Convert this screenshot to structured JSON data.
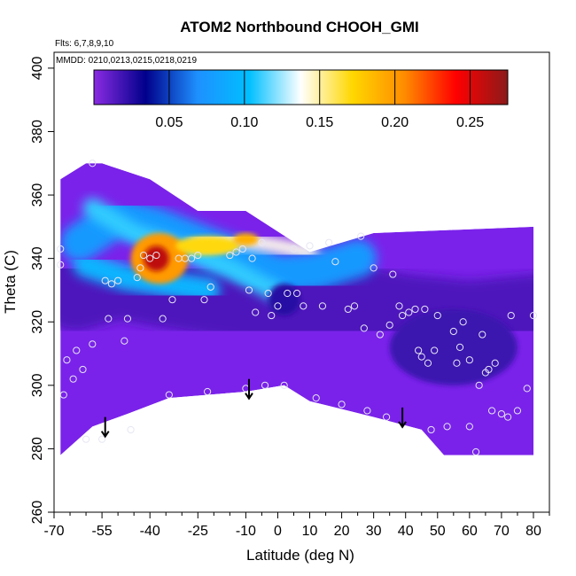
{
  "chart_data": {
    "type": "heatmap",
    "title": "ATOM2 Northbound CHOOH_GMI",
    "notes": [
      "Flts: 6,7,8,9,10",
      "MMDD: 0210,0213,0215,0218,0219"
    ],
    "xlabel": "Latitude (deg N)",
    "ylabel": "Theta (C)",
    "xlim": [
      -70,
      85
    ],
    "ylim": [
      260,
      405
    ],
    "x_ticks": [
      -70,
      -55,
      -40,
      -25,
      -10,
      0,
      10,
      20,
      30,
      40,
      50,
      60,
      70,
      80
    ],
    "x_minor_ticks": [
      -65,
      -60,
      -50,
      -45,
      -35,
      -30,
      -20,
      -15,
      -5,
      5,
      15,
      25,
      35,
      45,
      55,
      65,
      75,
      85
    ],
    "y_ticks": [
      260,
      280,
      300,
      320,
      340,
      360,
      380,
      400
    ],
    "colorbar": {
      "range": [
        0.0,
        0.275
      ],
      "ticks": [
        0.05,
        0.1,
        0.15,
        0.2,
        0.25
      ],
      "tick_labels": [
        "0.05",
        "0.10",
        "0.15",
        "0.20",
        "0.25"
      ],
      "colors": [
        "#8a2be2",
        "#00008b",
        "#1e90ff",
        "#00bfff",
        "#ffffff",
        "#ffd700",
        "#ff8c00",
        "#ff0000",
        "#8b1a1a"
      ]
    },
    "field_outline": [
      [
        -68,
        278
      ],
      [
        -58,
        287
      ],
      [
        -47,
        291
      ],
      [
        -34,
        296
      ],
      [
        -10,
        298
      ],
      [
        2,
        300
      ],
      [
        10,
        295
      ],
      [
        30,
        290
      ],
      [
        45,
        286
      ],
      [
        52,
        278
      ],
      [
        80,
        278
      ],
      [
        80,
        350
      ],
      [
        30,
        348
      ],
      [
        10,
        342
      ],
      [
        -10,
        355
      ],
      [
        -25,
        355
      ],
      [
        -40,
        365
      ],
      [
        -55,
        370
      ],
      [
        -60,
        370
      ],
      [
        -68,
        365
      ]
    ],
    "field_background": "#7a22ea",
    "field_features": [
      {
        "shape": "band",
        "points": [
          [
            -63,
            330
          ],
          [
            -50,
            334
          ],
          [
            -35,
            331
          ],
          [
            -10,
            327
          ],
          [
            5,
            324
          ],
          [
            20,
            326
          ],
          [
            40,
            322
          ],
          [
            60,
            320
          ],
          [
            80,
            322
          ]
        ],
        "width": 26,
        "value": 0.015
      },
      {
        "shape": "band",
        "points": [
          [
            -62,
            345
          ],
          [
            -50,
            353
          ],
          [
            -38,
            350
          ],
          [
            -25,
            345
          ],
          [
            -12,
            340
          ],
          [
            0,
            335
          ],
          [
            12,
            336
          ],
          [
            25,
            340
          ]
        ],
        "width": 12,
        "value": 0.075
      },
      {
        "shape": "band",
        "points": [
          [
            -58,
            356
          ],
          [
            -45,
            348
          ],
          [
            -30,
            343
          ],
          [
            -15,
            337
          ],
          [
            0,
            329
          ]
        ],
        "width": 6,
        "value": 0.11
      },
      {
        "shape": "band",
        "points": [
          [
            -60,
            338
          ],
          [
            -48,
            334
          ],
          [
            -35,
            332
          ],
          [
            -22,
            330
          ]
        ],
        "width": 8,
        "value": 0.095
      },
      {
        "shape": "band",
        "points": [
          [
            -25,
            345
          ],
          [
            -12,
            346
          ],
          [
            0,
            344
          ],
          [
            10,
            342
          ]
        ],
        "width": 5,
        "value": 0.14
      },
      {
        "shape": "blob",
        "center": [
          -37,
          340
        ],
        "radius": [
          9,
          8
        ],
        "value": 0.2
      },
      {
        "shape": "blob",
        "center": [
          -38,
          340
        ],
        "radius": [
          4,
          4
        ],
        "value": 0.26
      },
      {
        "shape": "blob",
        "center": [
          -22,
          344
        ],
        "radius": [
          10,
          3
        ],
        "value": 0.17
      },
      {
        "shape": "blob",
        "center": [
          -10,
          346
        ],
        "radius": [
          4,
          2
        ],
        "value": 0.19
      },
      {
        "shape": "blob",
        "center": [
          2,
          327
        ],
        "radius": [
          5,
          5
        ],
        "value": 0.025
      },
      {
        "shape": "blob",
        "center": [
          55,
          312
        ],
        "radius": [
          20,
          12
        ],
        "value": 0.02
      }
    ],
    "samples": [
      [
        -68,
        343
      ],
      [
        -68,
        338
      ],
      [
        -67,
        297
      ],
      [
        -66,
        308
      ],
      [
        -64,
        302
      ],
      [
        -63,
        311
      ],
      [
        -61,
        305
      ],
      [
        -60,
        283
      ],
      [
        -58,
        313
      ],
      [
        -58,
        370
      ],
      [
        -55,
        283
      ],
      [
        -54,
        333
      ],
      [
        -53,
        321
      ],
      [
        -52,
        332
      ],
      [
        -50,
        333
      ],
      [
        -48,
        314
      ],
      [
        -47,
        321
      ],
      [
        -46,
        286
      ],
      [
        -44,
        334
      ],
      [
        -43,
        337
      ],
      [
        -42,
        341
      ],
      [
        -40,
        340
      ],
      [
        -38,
        341
      ],
      [
        -36,
        321
      ],
      [
        -34,
        297
      ],
      [
        -33,
        327
      ],
      [
        -31,
        340
      ],
      [
        -29,
        340
      ],
      [
        -27,
        340
      ],
      [
        -25,
        341
      ],
      [
        -23,
        327
      ],
      [
        -22,
        298
      ],
      [
        -21,
        331
      ],
      [
        -15,
        341
      ],
      [
        -13,
        342
      ],
      [
        -11,
        343
      ],
      [
        -10,
        299
      ],
      [
        -9,
        330
      ],
      [
        -8,
        340
      ],
      [
        -7,
        323
      ],
      [
        -5,
        345
      ],
      [
        -4,
        300
      ],
      [
        -3,
        329
      ],
      [
        -2,
        322
      ],
      [
        0,
        325
      ],
      [
        2,
        300
      ],
      [
        3,
        329
      ],
      [
        5,
        343
      ],
      [
        6,
        329
      ],
      [
        8,
        325
      ],
      [
        10,
        344
      ],
      [
        12,
        296
      ],
      [
        14,
        325
      ],
      [
        16,
        345
      ],
      [
        18,
        339
      ],
      [
        20,
        294
      ],
      [
        22,
        324
      ],
      [
        24,
        325
      ],
      [
        26,
        347
      ],
      [
        27,
        318
      ],
      [
        28,
        292
      ],
      [
        30,
        337
      ],
      [
        32,
        316
      ],
      [
        34,
        290
      ],
      [
        35,
        319
      ],
      [
        36,
        335
      ],
      [
        38,
        325
      ],
      [
        39,
        322
      ],
      [
        41,
        323
      ],
      [
        43,
        324
      ],
      [
        44,
        311
      ],
      [
        45,
        309
      ],
      [
        46,
        324
      ],
      [
        47,
        307
      ],
      [
        48,
        286
      ],
      [
        49,
        311
      ],
      [
        50,
        322
      ],
      [
        53,
        287
      ],
      [
        55,
        317
      ],
      [
        56,
        307
      ],
      [
        57,
        312
      ],
      [
        58,
        320
      ],
      [
        60,
        287
      ],
      [
        60,
        308
      ],
      [
        62,
        279
      ],
      [
        63,
        300
      ],
      [
        64,
        316
      ],
      [
        65,
        304
      ],
      [
        66,
        305
      ],
      [
        67,
        292
      ],
      [
        68,
        307
      ],
      [
        70,
        291
      ],
      [
        72,
        290
      ],
      [
        73,
        322
      ],
      [
        75,
        292
      ],
      [
        78,
        299
      ],
      [
        80,
        322
      ]
    ],
    "arrows": [
      [
        -54,
        290
      ],
      [
        -9,
        302
      ],
      [
        39,
        293
      ]
    ]
  }
}
